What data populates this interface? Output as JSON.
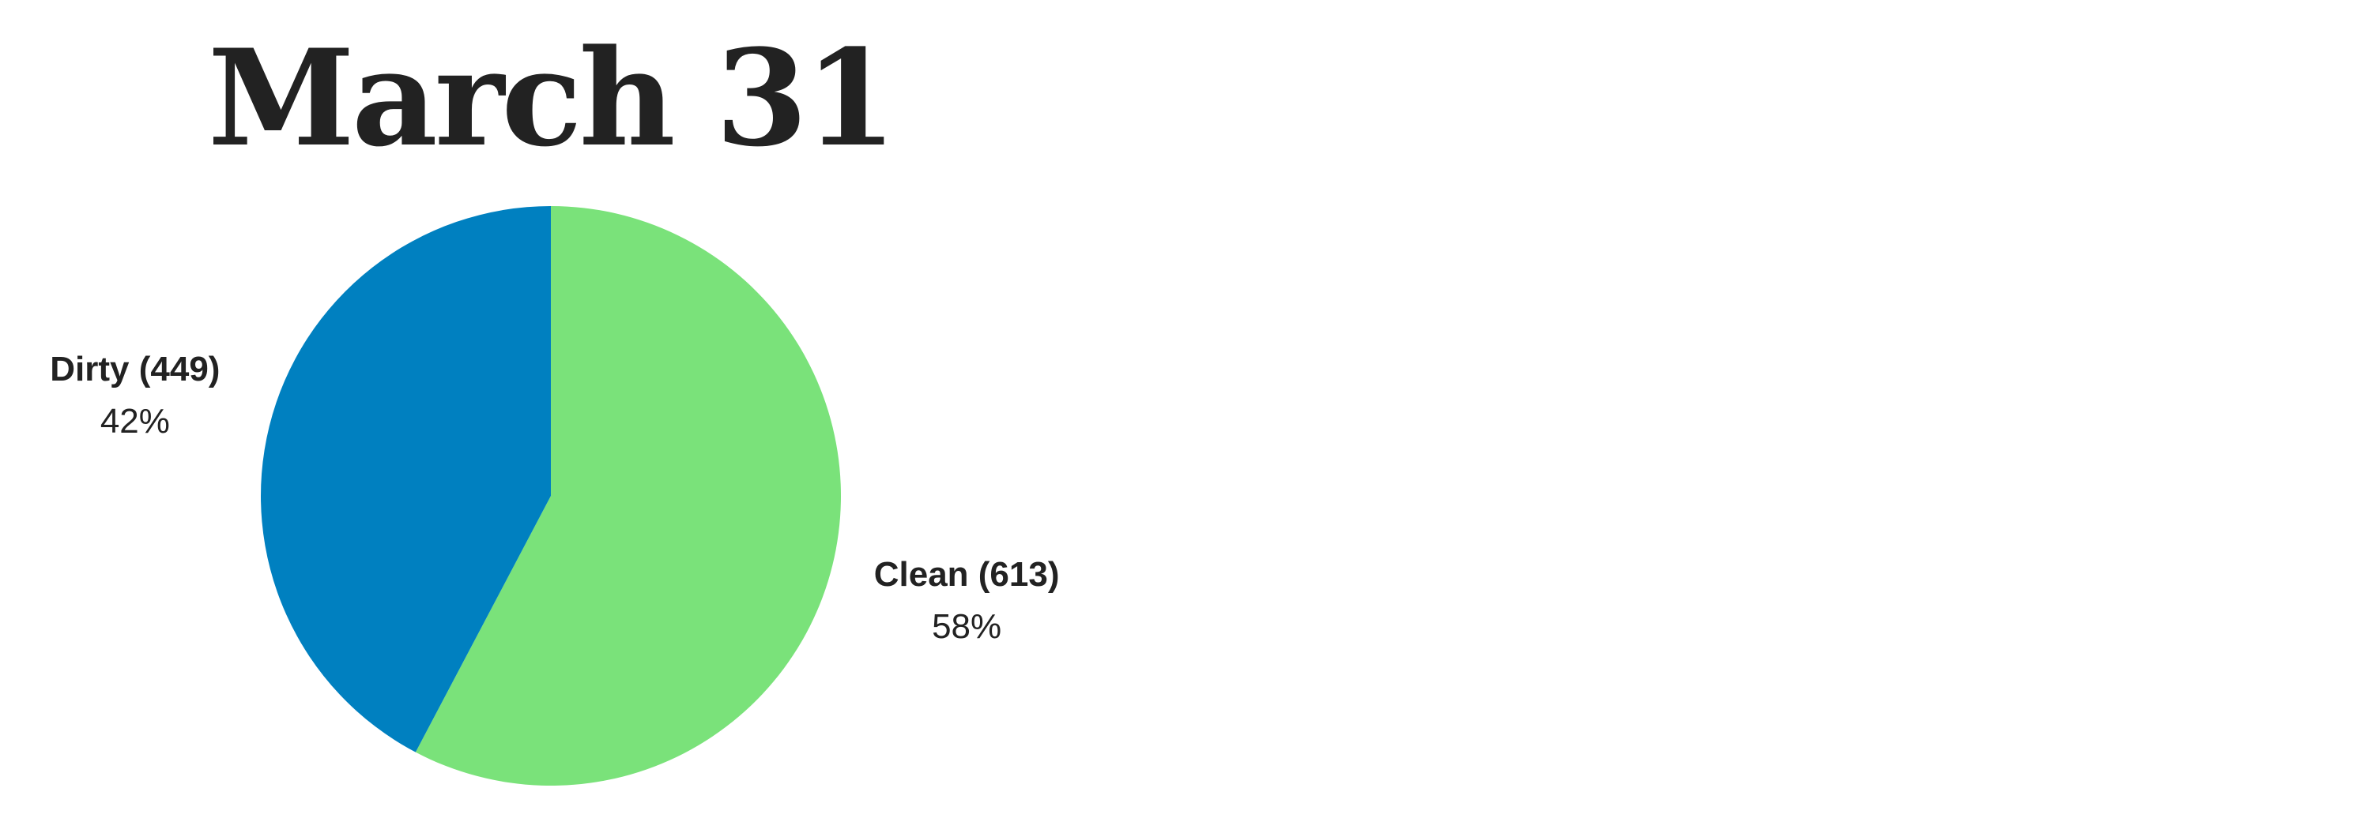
{
  "chart_data": {
    "type": "pie",
    "title": "March 31",
    "start_angle_deg": 0,
    "direction": "clockwise",
    "slices": [
      {
        "name": "Clean",
        "value": 613,
        "count_label": "Clean (613)",
        "percent_label": "58%",
        "color": "#7ae27a"
      },
      {
        "name": "Dirty",
        "value": 449,
        "count_label": "Dirty (449)",
        "percent_label": "42%",
        "color": "#0080c0"
      }
    ]
  }
}
